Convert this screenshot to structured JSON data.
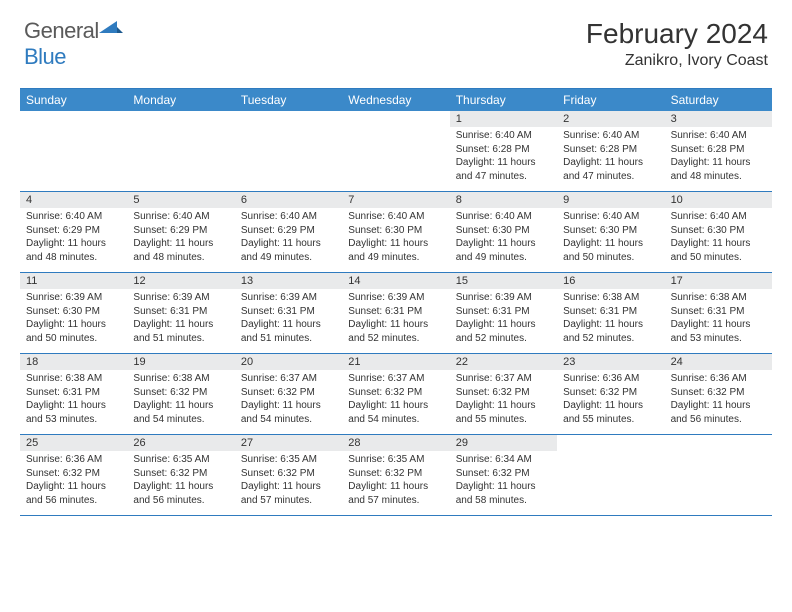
{
  "logo": {
    "part1": "General",
    "part2": "Blue"
  },
  "title": "February 2024",
  "location": "Zanikro, Ivory Coast",
  "colors": {
    "header_bar": "#3b89c9",
    "border": "#2f7bbf",
    "daynum_bg": "#e9eaeb",
    "text": "#333333",
    "logo_gray": "#5a5a5a",
    "logo_blue": "#2f7bbf"
  },
  "day_headers": [
    "Sunday",
    "Monday",
    "Tuesday",
    "Wednesday",
    "Thursday",
    "Friday",
    "Saturday"
  ],
  "weeks": [
    [
      {
        "n": "",
        "empty": true
      },
      {
        "n": "",
        "empty": true
      },
      {
        "n": "",
        "empty": true
      },
      {
        "n": "",
        "empty": true
      },
      {
        "n": "1",
        "sunrise": "Sunrise: 6:40 AM",
        "sunset": "Sunset: 6:28 PM",
        "daylight": "Daylight: 11 hours and 47 minutes."
      },
      {
        "n": "2",
        "sunrise": "Sunrise: 6:40 AM",
        "sunset": "Sunset: 6:28 PM",
        "daylight": "Daylight: 11 hours and 47 minutes."
      },
      {
        "n": "3",
        "sunrise": "Sunrise: 6:40 AM",
        "sunset": "Sunset: 6:28 PM",
        "daylight": "Daylight: 11 hours and 48 minutes."
      }
    ],
    [
      {
        "n": "4",
        "sunrise": "Sunrise: 6:40 AM",
        "sunset": "Sunset: 6:29 PM",
        "daylight": "Daylight: 11 hours and 48 minutes."
      },
      {
        "n": "5",
        "sunrise": "Sunrise: 6:40 AM",
        "sunset": "Sunset: 6:29 PM",
        "daylight": "Daylight: 11 hours and 48 minutes."
      },
      {
        "n": "6",
        "sunrise": "Sunrise: 6:40 AM",
        "sunset": "Sunset: 6:29 PM",
        "daylight": "Daylight: 11 hours and 49 minutes."
      },
      {
        "n": "7",
        "sunrise": "Sunrise: 6:40 AM",
        "sunset": "Sunset: 6:30 PM",
        "daylight": "Daylight: 11 hours and 49 minutes."
      },
      {
        "n": "8",
        "sunrise": "Sunrise: 6:40 AM",
        "sunset": "Sunset: 6:30 PM",
        "daylight": "Daylight: 11 hours and 49 minutes."
      },
      {
        "n": "9",
        "sunrise": "Sunrise: 6:40 AM",
        "sunset": "Sunset: 6:30 PM",
        "daylight": "Daylight: 11 hours and 50 minutes."
      },
      {
        "n": "10",
        "sunrise": "Sunrise: 6:40 AM",
        "sunset": "Sunset: 6:30 PM",
        "daylight": "Daylight: 11 hours and 50 minutes."
      }
    ],
    [
      {
        "n": "11",
        "sunrise": "Sunrise: 6:39 AM",
        "sunset": "Sunset: 6:30 PM",
        "daylight": "Daylight: 11 hours and 50 minutes."
      },
      {
        "n": "12",
        "sunrise": "Sunrise: 6:39 AM",
        "sunset": "Sunset: 6:31 PM",
        "daylight": "Daylight: 11 hours and 51 minutes."
      },
      {
        "n": "13",
        "sunrise": "Sunrise: 6:39 AM",
        "sunset": "Sunset: 6:31 PM",
        "daylight": "Daylight: 11 hours and 51 minutes."
      },
      {
        "n": "14",
        "sunrise": "Sunrise: 6:39 AM",
        "sunset": "Sunset: 6:31 PM",
        "daylight": "Daylight: 11 hours and 52 minutes."
      },
      {
        "n": "15",
        "sunrise": "Sunrise: 6:39 AM",
        "sunset": "Sunset: 6:31 PM",
        "daylight": "Daylight: 11 hours and 52 minutes."
      },
      {
        "n": "16",
        "sunrise": "Sunrise: 6:38 AM",
        "sunset": "Sunset: 6:31 PM",
        "daylight": "Daylight: 11 hours and 52 minutes."
      },
      {
        "n": "17",
        "sunrise": "Sunrise: 6:38 AM",
        "sunset": "Sunset: 6:31 PM",
        "daylight": "Daylight: 11 hours and 53 minutes."
      }
    ],
    [
      {
        "n": "18",
        "sunrise": "Sunrise: 6:38 AM",
        "sunset": "Sunset: 6:31 PM",
        "daylight": "Daylight: 11 hours and 53 minutes."
      },
      {
        "n": "19",
        "sunrise": "Sunrise: 6:38 AM",
        "sunset": "Sunset: 6:32 PM",
        "daylight": "Daylight: 11 hours and 54 minutes."
      },
      {
        "n": "20",
        "sunrise": "Sunrise: 6:37 AM",
        "sunset": "Sunset: 6:32 PM",
        "daylight": "Daylight: 11 hours and 54 minutes."
      },
      {
        "n": "21",
        "sunrise": "Sunrise: 6:37 AM",
        "sunset": "Sunset: 6:32 PM",
        "daylight": "Daylight: 11 hours and 54 minutes."
      },
      {
        "n": "22",
        "sunrise": "Sunrise: 6:37 AM",
        "sunset": "Sunset: 6:32 PM",
        "daylight": "Daylight: 11 hours and 55 minutes."
      },
      {
        "n": "23",
        "sunrise": "Sunrise: 6:36 AM",
        "sunset": "Sunset: 6:32 PM",
        "daylight": "Daylight: 11 hours and 55 minutes."
      },
      {
        "n": "24",
        "sunrise": "Sunrise: 6:36 AM",
        "sunset": "Sunset: 6:32 PM",
        "daylight": "Daylight: 11 hours and 56 minutes."
      }
    ],
    [
      {
        "n": "25",
        "sunrise": "Sunrise: 6:36 AM",
        "sunset": "Sunset: 6:32 PM",
        "daylight": "Daylight: 11 hours and 56 minutes."
      },
      {
        "n": "26",
        "sunrise": "Sunrise: 6:35 AM",
        "sunset": "Sunset: 6:32 PM",
        "daylight": "Daylight: 11 hours and 56 minutes."
      },
      {
        "n": "27",
        "sunrise": "Sunrise: 6:35 AM",
        "sunset": "Sunset: 6:32 PM",
        "daylight": "Daylight: 11 hours and 57 minutes."
      },
      {
        "n": "28",
        "sunrise": "Sunrise: 6:35 AM",
        "sunset": "Sunset: 6:32 PM",
        "daylight": "Daylight: 11 hours and 57 minutes."
      },
      {
        "n": "29",
        "sunrise": "Sunrise: 6:34 AM",
        "sunset": "Sunset: 6:32 PM",
        "daylight": "Daylight: 11 hours and 58 minutes."
      },
      {
        "n": "",
        "empty": true
      },
      {
        "n": "",
        "empty": true
      }
    ]
  ]
}
